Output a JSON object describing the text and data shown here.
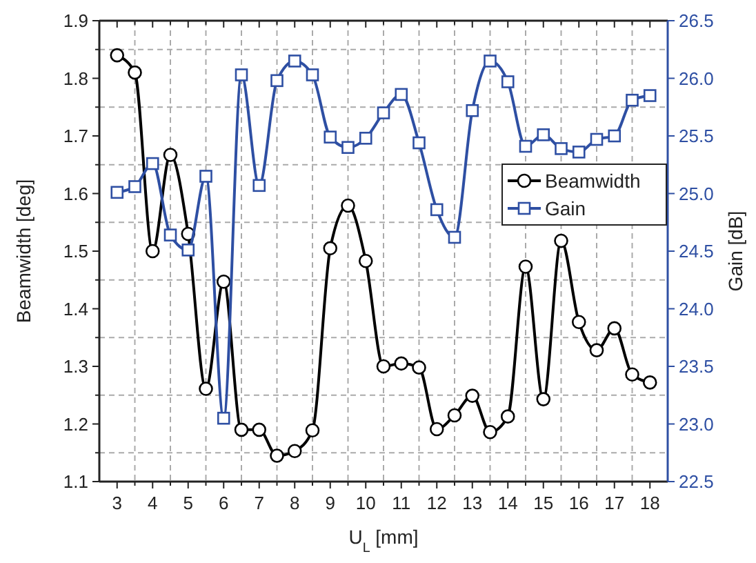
{
  "chart_data": {
    "type": "line",
    "xlabel": "U$_{L}$ [mm]",
    "ylabel": "Beamwidth [deg]",
    "y2label": "Gain [dB]",
    "x": [
      3,
      3.5,
      4,
      4.5,
      5,
      5.5,
      6,
      6.5,
      7,
      7.5,
      8,
      8.5,
      9,
      9.5,
      10,
      10.5,
      11,
      11.5,
      12,
      12.5,
      13,
      13.5,
      14,
      14.5,
      15,
      15.5,
      16,
      16.5,
      17,
      17.5,
      18
    ],
    "series": [
      {
        "name": "Beamwidth",
        "color": "#000000",
        "marker": "circle",
        "values": [
          1.84,
          1.81,
          1.5,
          1.667,
          1.53,
          1.261,
          1.447,
          1.19,
          1.19,
          1.145,
          1.153,
          1.189,
          1.505,
          1.579,
          1.483,
          1.3,
          1.305,
          1.298,
          1.191,
          1.215,
          1.249,
          1.186,
          1.213,
          1.473,
          1.243,
          1.518,
          1.377,
          1.328,
          1.366,
          1.286,
          1.272
        ]
      },
      {
        "name": "Gain",
        "color": "#2e4fa3",
        "marker": "square",
        "axis": "y2",
        "values": [
          25.01,
          25.06,
          25.26,
          24.64,
          24.51,
          25.15,
          23.05,
          26.03,
          25.07,
          25.98,
          26.15,
          26.03,
          25.49,
          25.4,
          25.48,
          25.7,
          25.86,
          25.44,
          24.86,
          24.62,
          25.72,
          26.15,
          25.97,
          25.41,
          25.51,
          25.39,
          25.36,
          25.47,
          25.5,
          25.81,
          25.85
        ]
      }
    ],
    "xlim": [
      2.5,
      18.5
    ],
    "xticks": [
      3,
      {
        "value": 3.5,
        "label": null
      },
      4,
      {
        "value": 4.5,
        "label": null
      },
      5,
      {
        "value": 5.5,
        "label": null
      },
      6,
      {
        "value": 6.5,
        "label": null
      },
      7,
      {
        "value": 7.5,
        "label": null
      },
      8,
      {
        "value": 8.5,
        "label": null
      },
      9,
      {
        "value": 9.5,
        "label": null
      },
      10,
      {
        "value": 10.5,
        "label": null
      },
      11,
      {
        "value": 11.5,
        "label": null
      },
      12,
      {
        "value": 12.5,
        "label": null
      },
      13,
      {
        "value": 13.5,
        "label": null
      },
      14,
      {
        "value": 14.5,
        "label": null
      },
      15,
      {
        "value": 15.5,
        "label": null
      },
      16,
      {
        "value": 16.5,
        "label": null
      },
      17,
      {
        "value": 17.5,
        "label": null
      },
      18
    ],
    "ylim": [
      1.1,
      1.9
    ],
    "yticks": [
      {
        "value": 1.1,
        "label": "1.1"
      },
      {
        "value": 1.15,
        "label": null
      },
      {
        "value": 1.2,
        "label": "1.2"
      },
      {
        "value": 1.25,
        "label": null
      },
      {
        "value": 1.3,
        "label": "1.3"
      },
      {
        "value": 1.35,
        "label": null
      },
      {
        "value": 1.4,
        "label": "1.4"
      },
      {
        "value": 1.45,
        "label": null
      },
      {
        "value": 1.5,
        "label": "1.5"
      },
      {
        "value": 1.55,
        "label": null
      },
      {
        "value": 1.6,
        "label": "1.6"
      },
      {
        "value": 1.65,
        "label": null
      },
      {
        "value": 1.7,
        "label": "1.7"
      },
      {
        "value": 1.75,
        "label": null
      },
      {
        "value": 1.8,
        "label": "1.8"
      },
      {
        "value": 1.85,
        "label": null
      },
      {
        "value": 1.9,
        "label": "1.9"
      }
    ],
    "y2lim": [
      22.5,
      26.5
    ],
    "y2ticks": [
      {
        "value": 22.5,
        "label": "22.5"
      },
      {
        "value": 23,
        "label": "23.0"
      },
      {
        "value": 23.5,
        "label": "23.5"
      },
      {
        "value": 24,
        "label": "24.0"
      },
      {
        "value": 24.5,
        "label": "24.5"
      },
      {
        "value": 25,
        "label": "25.0"
      },
      {
        "value": 25.5,
        "label": "25.5"
      },
      {
        "value": 26,
        "label": "26.0"
      },
      {
        "value": 26.5,
        "label": "26.5"
      }
    ],
    "grid": true,
    "legend": "right",
    "line_style": "solid"
  }
}
